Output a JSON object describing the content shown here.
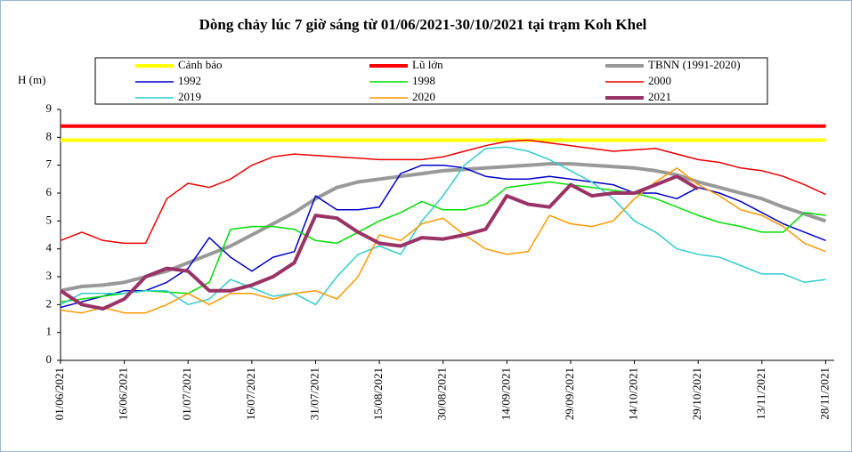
{
  "chart_data": {
    "type": "line",
    "title": "Dòng chảy lúc 7 giờ sáng từ 01/06/2021-30/10/2021 tại trạm Koh Khel",
    "y_label": "H (m)",
    "x": [
      "01/06/2021",
      "06/06/2021",
      "11/06/2021",
      "16/06/2021",
      "21/06/2021",
      "26/06/2021",
      "01/07/2021",
      "06/07/2021",
      "11/07/2021",
      "16/07/2021",
      "21/07/2021",
      "26/07/2021",
      "31/07/2021",
      "05/08/2021",
      "10/08/2021",
      "15/08/2021",
      "20/08/2021",
      "25/08/2021",
      "30/08/2021",
      "04/09/2021",
      "09/09/2021",
      "14/09/2021",
      "19/09/2021",
      "24/09/2021",
      "29/09/2021",
      "04/10/2021",
      "09/10/2021",
      "14/10/2021",
      "19/10/2021",
      "24/10/2021",
      "29/10/2021",
      "03/11/2021",
      "08/11/2021",
      "13/11/2021",
      "18/11/2021",
      "23/11/2021",
      "28/11/2021"
    ],
    "xlim": [
      "01/06/2021",
      "30/11/2021"
    ],
    "xticks": [
      "01/06/2021",
      "16/06/2021",
      "01/07/2021",
      "16/07/2021",
      "31/07/2021",
      "15/08/2021",
      "30/08/2021",
      "14/09/2021",
      "29/09/2021",
      "14/10/2021",
      "29/10/2021",
      "13/11/2021",
      "28/11/2021"
    ],
    "ylim": [
      0,
      9
    ],
    "yticks": [
      0,
      1,
      2,
      3,
      4,
      5,
      6,
      7,
      8,
      9
    ],
    "grid": false,
    "series": [
      {
        "name": "Cảnh báo",
        "color": "#ffff00",
        "values": [
          7.9,
          7.9,
          7.9,
          7.9,
          7.9,
          7.9,
          7.9,
          7.9,
          7.9,
          7.9,
          7.9,
          7.9,
          7.9,
          7.9,
          7.9,
          7.9,
          7.9,
          7.9,
          7.9,
          7.9,
          7.9,
          7.9,
          7.9,
          7.9,
          7.9,
          7.9,
          7.9,
          7.9,
          7.9,
          7.9,
          7.9,
          7.9,
          7.9,
          7.9,
          7.9,
          7.9,
          7.9
        ]
      },
      {
        "name": "Lũ lớn",
        "color": "#ff0000",
        "values": [
          8.4,
          8.4,
          8.4,
          8.4,
          8.4,
          8.4,
          8.4,
          8.4,
          8.4,
          8.4,
          8.4,
          8.4,
          8.4,
          8.4,
          8.4,
          8.4,
          8.4,
          8.4,
          8.4,
          8.4,
          8.4,
          8.4,
          8.4,
          8.4,
          8.4,
          8.4,
          8.4,
          8.4,
          8.4,
          8.4,
          8.4,
          8.4,
          8.4,
          8.4,
          8.4,
          8.4,
          8.4
        ]
      },
      {
        "name": "TBNN (1991-2020)",
        "color": "#999999",
        "values": [
          2.5,
          2.65,
          2.7,
          2.8,
          3.0,
          3.2,
          3.5,
          3.8,
          4.1,
          4.5,
          4.9,
          5.3,
          5.8,
          6.2,
          6.4,
          6.5,
          6.6,
          6.7,
          6.8,
          6.85,
          6.9,
          6.95,
          7.0,
          7.05,
          7.05,
          7.0,
          6.95,
          6.9,
          6.8,
          6.65,
          6.4,
          6.2,
          6.0,
          5.8,
          5.5,
          5.25,
          5.0
        ]
      },
      {
        "name": "1992",
        "color": "#0000cc",
        "values": [
          1.9,
          2.1,
          2.3,
          2.5,
          2.5,
          2.8,
          3.3,
          4.4,
          3.7,
          3.2,
          3.7,
          3.9,
          5.9,
          5.4,
          5.4,
          5.5,
          6.7,
          7.0,
          7.0,
          6.9,
          6.6,
          6.5,
          6.5,
          6.6,
          6.5,
          6.4,
          6.3,
          6.0,
          6.0,
          5.8,
          6.2,
          6.0,
          5.7,
          5.3,
          4.9,
          4.6,
          4.3
        ]
      },
      {
        "name": "1998",
        "color": "#00e000",
        "values": [
          2.1,
          2.2,
          2.3,
          2.4,
          2.5,
          2.45,
          2.4,
          2.8,
          4.7,
          4.8,
          4.8,
          4.7,
          4.3,
          4.2,
          4.6,
          5.0,
          5.3,
          5.7,
          5.4,
          5.4,
          5.6,
          6.2,
          6.3,
          6.4,
          6.3,
          6.2,
          6.1,
          6.0,
          5.8,
          5.5,
          5.2,
          4.95,
          4.8,
          4.6,
          4.6,
          5.3,
          5.2
        ]
      },
      {
        "name": "2000",
        "color": "#ee0000",
        "values": [
          4.3,
          4.6,
          4.3,
          4.2,
          4.2,
          5.8,
          6.35,
          6.2,
          6.5,
          7.0,
          7.3,
          7.4,
          7.35,
          7.3,
          7.25,
          7.2,
          7.2,
          7.2,
          7.3,
          7.5,
          7.7,
          7.85,
          7.9,
          7.8,
          7.7,
          7.6,
          7.5,
          7.55,
          7.6,
          7.4,
          7.2,
          7.1,
          6.9,
          6.8,
          6.6,
          6.3,
          5.95
        ]
      },
      {
        "name": "2019",
        "color": "#33cccc",
        "values": [
          2.0,
          2.4,
          2.4,
          2.4,
          2.5,
          2.5,
          2.0,
          2.2,
          2.9,
          2.6,
          2.3,
          2.4,
          2.0,
          3.0,
          3.8,
          4.1,
          3.8,
          5.0,
          5.9,
          7.0,
          7.6,
          7.65,
          7.5,
          7.2,
          6.8,
          6.4,
          5.8,
          5.0,
          4.6,
          4.0,
          3.8,
          3.7,
          3.4,
          3.1,
          3.1,
          2.8,
          2.9
        ]
      },
      {
        "name": "2020",
        "color": "#ff9900",
        "values": [
          1.8,
          1.7,
          1.9,
          1.7,
          1.7,
          2.0,
          2.4,
          2.0,
          2.4,
          2.4,
          2.2,
          2.4,
          2.5,
          2.2,
          3.0,
          4.5,
          4.3,
          4.9,
          5.1,
          4.5,
          4.0,
          3.8,
          3.9,
          5.2,
          4.9,
          4.8,
          5.0,
          5.8,
          6.4,
          6.9,
          6.3,
          5.9,
          5.4,
          5.2,
          4.8,
          4.2,
          3.9
        ]
      },
      {
        "name": "2021",
        "color": "#993366",
        "values": [
          2.5,
          2.0,
          1.85,
          2.2,
          3.0,
          3.3,
          3.2,
          2.5,
          2.5,
          2.7,
          3.0,
          3.5,
          5.2,
          5.1,
          4.6,
          4.2,
          4.1,
          4.4,
          4.35,
          4.5,
          4.7,
          5.9,
          5.6,
          5.5,
          6.3,
          5.9,
          6.0,
          6.0,
          6.3,
          6.6,
          6.15,
          null,
          null,
          null,
          null,
          null,
          null
        ]
      }
    ]
  }
}
